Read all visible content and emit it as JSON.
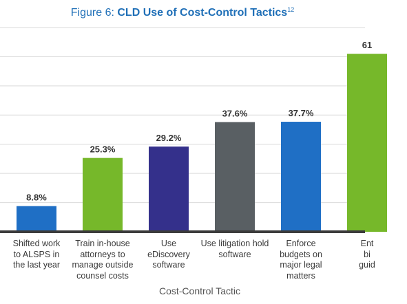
{
  "title": {
    "prefix": "Figure 6: ",
    "main": "CLD Use of Cost-Control Tactics",
    "sup": "12"
  },
  "chart_data": {
    "type": "bar",
    "categories": [
      "Shifted work to ALSPS in the last year",
      "Train in-house attorneys to manage outside counsel costs",
      "Use eDiscovery software",
      "Use litigation hold software",
      "Enforce budgets on major legal matters",
      "Ent bi guid"
    ],
    "category_lines": [
      [
        "Shifted work",
        "to ALSPS in",
        "the last year"
      ],
      [
        "Train in-house",
        "attorneys to",
        "manage outside",
        "counsel costs"
      ],
      [
        "Use",
        "eDiscovery",
        "software"
      ],
      [
        "Use litigation hold",
        "software"
      ],
      [
        "Enforce",
        "budgets on",
        "major legal",
        "matters"
      ],
      [
        "Ent",
        "bi",
        "guid"
      ]
    ],
    "values": [
      8.8,
      25.3,
      29.2,
      37.6,
      37.7,
      61
    ],
    "labels": [
      "8.8%",
      "25.3%",
      "29.2%",
      "37.6%",
      "37.7%",
      "61"
    ],
    "colors": [
      "#1f6fc5",
      "#76b82a",
      "#34308b",
      "#595f63",
      "#1f6fc5",
      "#76b82a"
    ],
    "xlabel": "Cost-Control Tactic",
    "ylabel": "",
    "ylim": [
      0,
      70
    ],
    "grid": true
  }
}
